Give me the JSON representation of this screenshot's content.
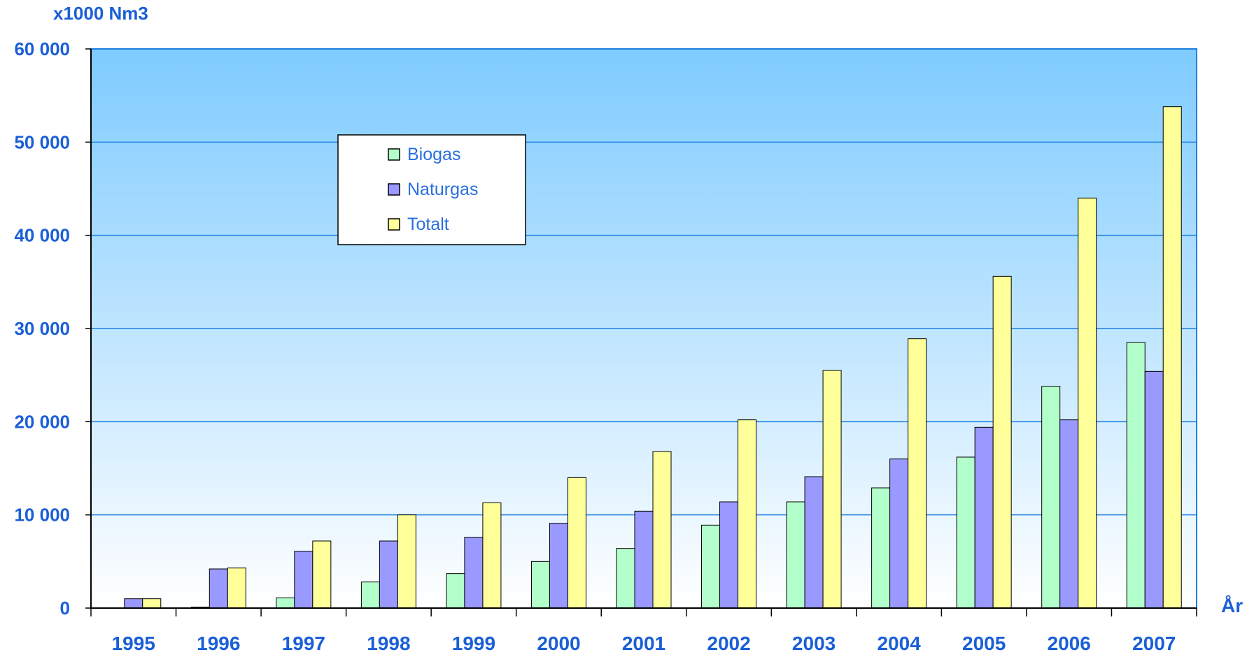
{
  "chart_data": {
    "type": "bar",
    "ylabel": "x1000 Nm3",
    "xlabel": "År",
    "ylim": [
      0,
      60000
    ],
    "yticks": [
      0,
      10000,
      20000,
      30000,
      40000,
      50000,
      60000
    ],
    "ytick_labels": [
      "0",
      "10 000",
      "20 000",
      "30 000",
      "40 000",
      "50 000",
      "60 000"
    ],
    "categories": [
      "1995",
      "1996",
      "1997",
      "1998",
      "1999",
      "2000",
      "2001",
      "2002",
      "2003",
      "2004",
      "2005",
      "2006",
      "2007"
    ],
    "series": [
      {
        "name": "Biogas",
        "color": "#b3ffcc",
        "values": [
          0,
          100,
          1100,
          2800,
          3700,
          5000,
          6400,
          8900,
          11400,
          12900,
          16200,
          23800,
          28500
        ]
      },
      {
        "name": "Naturgas",
        "color": "#9999ff",
        "values": [
          1000,
          4200,
          6100,
          7200,
          7600,
          9100,
          10400,
          11400,
          14100,
          16000,
          19400,
          20200,
          25400
        ]
      },
      {
        "name": "Totalt",
        "color": "#ffff99",
        "values": [
          1000,
          4300,
          7200,
          10000,
          11300,
          14000,
          16800,
          20200,
          25500,
          28900,
          35600,
          44000,
          53800
        ]
      }
    ],
    "grid": true,
    "legend_position": "upper-left",
    "background_gradient": [
      "#7ecbff",
      "#ffffff"
    ]
  }
}
